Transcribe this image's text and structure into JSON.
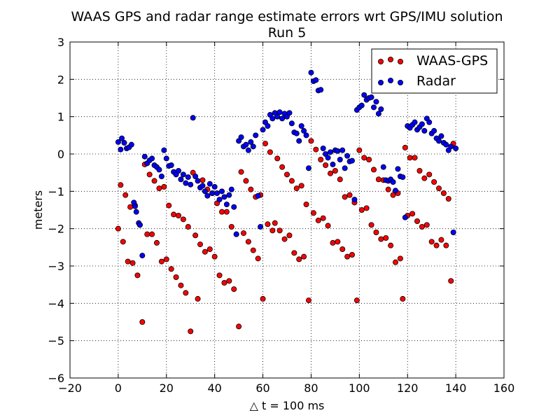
{
  "chart_data": {
    "type": "scatter",
    "title": "WAAS GPS and radar range estimate errors wrt GPS/IMU solution",
    "subtitle": "Run 5",
    "xlabel": "△ t = 100 ms",
    "ylabel": "meters",
    "xlim": [
      -20,
      160
    ],
    "ylim": [
      -6,
      3
    ],
    "xticks": [
      -20,
      0,
      20,
      40,
      60,
      80,
      100,
      120,
      140,
      160
    ],
    "yticks": [
      -6,
      -5,
      -4,
      -3,
      -2,
      -1,
      0,
      1,
      2,
      3
    ],
    "grid": true,
    "legend_position": "top-right",
    "series": [
      {
        "name": "WAAS-GPS",
        "color": "#ff0000",
        "points": [
          [
            0,
            -2.0
          ],
          [
            1,
            -0.83
          ],
          [
            2,
            -2.35
          ],
          [
            3,
            -1.1
          ],
          [
            4,
            -2.88
          ],
          [
            5,
            -1.42
          ],
          [
            6,
            -2.92
          ],
          [
            7,
            -1.38
          ],
          [
            8,
            -3.25
          ],
          [
            9,
            -1.9
          ],
          [
            10,
            -4.5
          ],
          [
            11,
            -0.28
          ],
          [
            12,
            -2.15
          ],
          [
            13,
            -0.55
          ],
          [
            14,
            -2.15
          ],
          [
            15,
            -0.72
          ],
          [
            16,
            -2.38
          ],
          [
            17,
            -0.92
          ],
          [
            18,
            -2.88
          ],
          [
            19,
            -0.88
          ],
          [
            20,
            -2.82
          ],
          [
            21,
            -1.38
          ],
          [
            22,
            -3.08
          ],
          [
            23,
            -1.62
          ],
          [
            24,
            -3.3
          ],
          [
            25,
            -1.65
          ],
          [
            26,
            -3.52
          ],
          [
            27,
            -1.75
          ],
          [
            28,
            -3.72
          ],
          [
            29,
            -1.95
          ],
          [
            30,
            -4.75
          ],
          [
            31,
            -0.5
          ],
          [
            32,
            -2.18
          ],
          [
            33,
            -3.88
          ],
          [
            34,
            -2.42
          ],
          [
            35,
            -0.7
          ],
          [
            36,
            -2.62
          ],
          [
            37,
            -0.95
          ],
          [
            38,
            -2.55
          ],
          [
            39,
            -1.05
          ],
          [
            40,
            -2.75
          ],
          [
            41,
            -1.32
          ],
          [
            42,
            -3.25
          ],
          [
            43,
            -1.55
          ],
          [
            44,
            -3.45
          ],
          [
            45,
            -1.55
          ],
          [
            46,
            -3.4
          ],
          [
            47,
            -1.95
          ],
          [
            48,
            -3.62
          ],
          [
            49,
            -2.15
          ],
          [
            50,
            -4.62
          ],
          [
            51,
            -0.48
          ],
          [
            52,
            -2.12
          ],
          [
            53,
            -0.72
          ],
          [
            54,
            -2.35
          ],
          [
            55,
            -0.95
          ],
          [
            56,
            -2.58
          ],
          [
            57,
            -1.15
          ],
          [
            58,
            -2.8
          ],
          [
            59,
            -1.1
          ],
          [
            60,
            -3.88
          ],
          [
            61,
            0.28
          ],
          [
            62,
            -1.88
          ],
          [
            63,
            0.05
          ],
          [
            64,
            -2.05
          ],
          [
            65,
            -1.85
          ],
          [
            66,
            -0.12
          ],
          [
            67,
            -2.05
          ],
          [
            68,
            -0.35
          ],
          [
            69,
            -2.28
          ],
          [
            70,
            -0.55
          ],
          [
            71,
            -2.18
          ],
          [
            72,
            -0.72
          ],
          [
            73,
            -2.65
          ],
          [
            74,
            -0.92
          ],
          [
            75,
            -2.82
          ],
          [
            76,
            -0.85
          ],
          [
            77,
            -2.75
          ],
          [
            78,
            -1.35
          ],
          [
            79,
            -3.92
          ],
          [
            80,
            0.35
          ],
          [
            81,
            -1.58
          ],
          [
            82,
            0.12
          ],
          [
            83,
            -1.78
          ],
          [
            84,
            -0.15
          ],
          [
            85,
            -1.72
          ],
          [
            86,
            -0.3
          ],
          [
            87,
            -1.92
          ],
          [
            88,
            -0.52
          ],
          [
            89,
            -2.38
          ],
          [
            90,
            -0.45
          ],
          [
            91,
            -2.35
          ],
          [
            92,
            -0.68
          ],
          [
            93,
            -2.55
          ],
          [
            94,
            -1.15
          ],
          [
            95,
            -2.75
          ],
          [
            96,
            -1.1
          ],
          [
            97,
            -2.7
          ],
          [
            98,
            -1.3
          ],
          [
            99,
            -3.92
          ],
          [
            100,
            0.1
          ],
          [
            101,
            -1.5
          ],
          [
            102,
            -0.1
          ],
          [
            103,
            -1.45
          ],
          [
            104,
            -0.15
          ],
          [
            105,
            -1.9
          ],
          [
            106,
            -0.42
          ],
          [
            107,
            -2.1
          ],
          [
            108,
            -0.68
          ],
          [
            109,
            -2.28
          ],
          [
            110,
            -0.7
          ],
          [
            111,
            -2.25
          ],
          [
            112,
            -0.95
          ],
          [
            113,
            -2.45
          ],
          [
            114,
            -1.1
          ],
          [
            115,
            -2.9
          ],
          [
            116,
            -1.05
          ],
          [
            117,
            -2.8
          ],
          [
            118,
            -3.88
          ],
          [
            119,
            0.17
          ],
          [
            120,
            -1.65
          ],
          [
            121,
            -0.1
          ],
          [
            122,
            -1.6
          ],
          [
            123,
            -0.1
          ],
          [
            124,
            -1.8
          ],
          [
            125,
            -0.45
          ],
          [
            126,
            -1.95
          ],
          [
            127,
            -0.65
          ],
          [
            128,
            -1.9
          ],
          [
            129,
            -0.55
          ],
          [
            130,
            -2.35
          ],
          [
            131,
            -0.75
          ],
          [
            132,
            -2.45
          ],
          [
            133,
            -0.92
          ],
          [
            134,
            -2.3
          ],
          [
            135,
            -1.05
          ],
          [
            136,
            -2.45
          ],
          [
            137,
            -1.2
          ],
          [
            138,
            -3.4
          ],
          [
            139,
            0.28
          ]
        ]
      },
      {
        "name": "Radar",
        "color": "#0000ff",
        "points": [
          [
            0,
            0.32
          ],
          [
            1,
            0.12
          ],
          [
            1.5,
            0.42
          ],
          [
            2.5,
            0.3
          ],
          [
            3.5,
            0.15
          ],
          [
            4.5,
            0.18
          ],
          [
            5.5,
            0.25
          ],
          [
            6.5,
            -1.3
          ],
          [
            7,
            -1.4
          ],
          [
            7.5,
            -1.55
          ],
          [
            8.5,
            -1.85
          ],
          [
            9,
            -1.9
          ],
          [
            10,
            -2.72
          ],
          [
            11,
            -0.07
          ],
          [
            12,
            -0.25
          ],
          [
            13,
            -0.17
          ],
          [
            14,
            -0.12
          ],
          [
            15,
            -0.3
          ],
          [
            16,
            -0.35
          ],
          [
            17,
            -0.42
          ],
          [
            18,
            -0.6
          ],
          [
            19,
            0.1
          ],
          [
            20,
            -0.12
          ],
          [
            21,
            -0.32
          ],
          [
            22,
            -0.3
          ],
          [
            23,
            -0.48
          ],
          [
            24,
            -0.55
          ],
          [
            25,
            -0.45
          ],
          [
            26,
            -0.68
          ],
          [
            27,
            -0.55
          ],
          [
            28,
            -0.78
          ],
          [
            29,
            -0.62
          ],
          [
            30,
            -0.82
          ],
          [
            31,
            0.97
          ],
          [
            32,
            -0.6
          ],
          [
            33,
            -0.72
          ],
          [
            34,
            -0.9
          ],
          [
            35,
            -0.85
          ],
          [
            36,
            -1.0
          ],
          [
            37,
            -1.12
          ],
          [
            38,
            -0.8
          ],
          [
            39,
            -1.05
          ],
          [
            40,
            -0.88
          ],
          [
            41,
            -1.05
          ],
          [
            42,
            -1.22
          ],
          [
            43,
            -1.0
          ],
          [
            44,
            -1.15
          ],
          [
            45,
            -1.35
          ],
          [
            46,
            -1.1
          ],
          [
            47,
            -0.95
          ],
          [
            48,
            -1.42
          ],
          [
            49,
            -2.15
          ],
          [
            50,
            0.35
          ],
          [
            51,
            0.45
          ],
          [
            52,
            0.2
          ],
          [
            53,
            0.25
          ],
          [
            54,
            0.1
          ],
          [
            55,
            0.32
          ],
          [
            56,
            0.2
          ],
          [
            57,
            0.5
          ],
          [
            58,
            -1.12
          ],
          [
            59,
            -1.95
          ],
          [
            60,
            0.65
          ],
          [
            61,
            0.85
          ],
          [
            62,
            0.75
          ],
          [
            63,
            1.05
          ],
          [
            64,
            0.95
          ],
          [
            65,
            1.1
          ],
          [
            66,
            1.0
          ],
          [
            67,
            1.12
          ],
          [
            68,
            0.95
          ],
          [
            69,
            1.08
          ],
          [
            70,
            1.0
          ],
          [
            71,
            1.1
          ],
          [
            72,
            0.82
          ],
          [
            73,
            0.58
          ],
          [
            74,
            0.55
          ],
          [
            75,
            0.35
          ],
          [
            76,
            0.75
          ],
          [
            77,
            0.62
          ],
          [
            78,
            0.5
          ],
          [
            79,
            -0.38
          ],
          [
            80,
            2.18
          ],
          [
            81,
            1.95
          ],
          [
            82,
            1.98
          ],
          [
            83,
            1.7
          ],
          [
            84,
            1.72
          ],
          [
            85,
            0.15
          ],
          [
            86,
            0.0
          ],
          [
            87,
            -0.1
          ],
          [
            88,
            0.05
          ],
          [
            89,
            -0.28
          ],
          [
            90,
            0.1
          ],
          [
            91,
            0.08
          ],
          [
            92,
            -0.15
          ],
          [
            93,
            0.1
          ],
          [
            94,
            -0.38
          ],
          [
            95,
            -0.05
          ],
          [
            96,
            -0.2
          ],
          [
            97,
            -0.18
          ],
          [
            98,
            -1.22
          ],
          [
            99,
            1.18
          ],
          [
            100,
            1.25
          ],
          [
            101,
            1.3
          ],
          [
            102,
            1.58
          ],
          [
            103,
            1.45
          ],
          [
            104,
            1.5
          ],
          [
            105,
            1.52
          ],
          [
            106,
            1.25
          ],
          [
            107,
            1.4
          ],
          [
            108,
            1.08
          ],
          [
            109,
            1.2
          ],
          [
            110,
            -0.35
          ],
          [
            111,
            -0.7
          ],
          [
            112,
            -0.72
          ],
          [
            113,
            -0.68
          ],
          [
            114,
            -0.75
          ],
          [
            115,
            -0.98
          ],
          [
            116,
            -0.4
          ],
          [
            117,
            -0.6
          ],
          [
            118,
            -0.62
          ],
          [
            119,
            -1.7
          ],
          [
            120,
            0.75
          ],
          [
            121,
            0.7
          ],
          [
            122,
            0.78
          ],
          [
            123,
            0.85
          ],
          [
            124,
            0.65
          ],
          [
            125,
            0.72
          ],
          [
            126,
            0.8
          ],
          [
            127,
            0.62
          ],
          [
            128,
            0.95
          ],
          [
            129,
            0.85
          ],
          [
            130,
            0.55
          ],
          [
            131,
            0.62
          ],
          [
            132,
            0.42
          ],
          [
            133,
            0.35
          ],
          [
            134,
            0.48
          ],
          [
            135,
            0.3
          ],
          [
            136,
            0.25
          ],
          [
            137,
            0.1
          ],
          [
            138,
            0.2
          ],
          [
            139,
            -2.1
          ],
          [
            140,
            0.15
          ]
        ]
      }
    ]
  }
}
